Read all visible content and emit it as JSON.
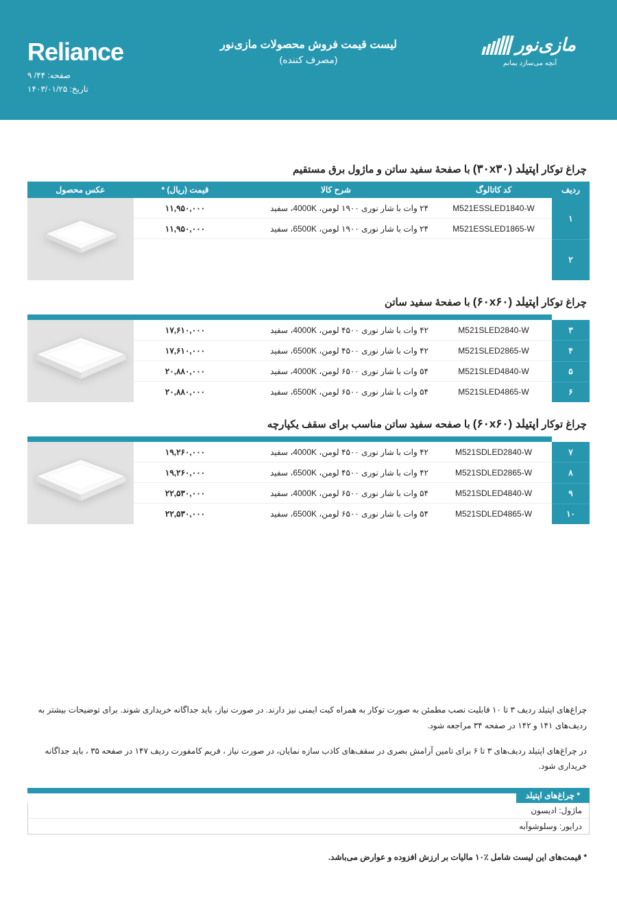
{
  "header": {
    "brand_name": "Reliance",
    "page_label": "صفحه: ۴۴/  ۹",
    "date_label": "تاریخ: ۱۴۰۳/۰۱/۲۵",
    "title_line1": "لیست قیمت فروش محصولات مازی‌نور",
    "title_line2": "(مصرف کننده)",
    "logo_text": "مازی‌نور",
    "logo_tagline": "آنچه می‌سازد بمانم"
  },
  "columns": {
    "idx": "ردیف",
    "code": "کد کاتالوگ",
    "desc": "شرح کالا",
    "price": "قیمت (ریال) *",
    "img": "عکس محصول"
  },
  "sections": [
    {
      "title_pre": "چراغ توکار ",
      "title_big": "اپتیلد (۳۰x۳۰)",
      "title_post": " با صفحهٔ سفید ساتن و ماژول برق مستقیم",
      "rows": [
        {
          "idx": "۱",
          "code": "M521ESSLED1840-W",
          "desc": "۲۴ وات با شار نوری  ۱۹۰۰ لومن، 4000K، سفید",
          "price": "۱۱,۹۵۰,۰۰۰"
        },
        {
          "idx": "۲",
          "code": "M521ESSLED1865-W",
          "desc": "۲۴ وات با شار نوری  ۱۹۰۰ لومن، 6500K، سفید",
          "price": "۱۱,۹۵۰,۰۰۰"
        }
      ]
    },
    {
      "title_pre": "چراغ توکار ",
      "title_big": "اپتیلد (۶۰x۶۰)",
      "title_post": " با صفحهٔ سفید ساتن",
      "rows": [
        {
          "idx": "۳",
          "code": "M521SLED2840-W",
          "desc": "۴۲ وات با شار نوری  ۴۵۰۰ لومن، 4000K، سفید",
          "price": "۱۷,۶۱۰,۰۰۰"
        },
        {
          "idx": "۴",
          "code": "M521SLED2865-W",
          "desc": "۴۲ وات با شار نوری  ۴۵۰۰ لومن، 6500K، سفید",
          "price": "۱۷,۶۱۰,۰۰۰"
        },
        {
          "idx": "۵",
          "code": "M521SLED4840-W",
          "desc": "۵۴ وات با شار نوری  ۶۵۰۰ لومن، 4000K، سفید",
          "price": "۲۰,۸۸۰,۰۰۰"
        },
        {
          "idx": "۶",
          "code": "M521SLED4865-W",
          "desc": "۵۴ وات با شار نوری  ۶۵۰۰ لومن، 6500K، سفید",
          "price": "۲۰,۸۸۰,۰۰۰"
        }
      ]
    },
    {
      "title_pre": "چراغ توکار ",
      "title_big": "اپتیلد (۶۰x۶۰)",
      "title_post": " با صفحه سفید ساتن مناسب برای سقف یکپارچه",
      "rows": [
        {
          "idx": "۷",
          "code": "M521SDLED2840-W",
          "desc": "۴۲ وات با شار نوری  ۴۵۰۰ لومن، 4000K، سفید",
          "price": "۱۹,۲۶۰,۰۰۰"
        },
        {
          "idx": "۸",
          "code": "M521SDLED2865-W",
          "desc": "۴۲ وات با شار نوری  ۴۵۰۰ لومن، 6500K، سفید",
          "price": "۱۹,۲۶۰,۰۰۰"
        },
        {
          "idx": "۹",
          "code": "M521SDLED4840-W",
          "desc": "۵۴ وات با شار نوری  ۶۵۰۰ لومن، 4000K، سفید",
          "price": "۲۲,۵۳۰,۰۰۰"
        },
        {
          "idx": "۱۰",
          "code": "M521SDLED4865-W",
          "desc": "۵۴ وات با شار نوری  ۶۵۰۰ لومن، 6500K، سفید",
          "price": "۲۲,۵۳۰,۰۰۰"
        }
      ]
    }
  ],
  "notes": [
    "چراغ‌های اپتیلد ردیف ۳ تا ۱۰ قابلیت نصب مطمئن به صورت توکار به همراه کیت ایمنی نیز دارند. در صورت نیاز، باید جداگانه خریداری شوند. برای توضیحات بیشتر به ردیف‌های ۱۴۱ و ۱۴۲ در صفحه ۳۴ مراجعه شود.",
    "در چراغ‌های اپتیلد ردیف‌های ۳ تا ۶ برای تامین آرامش بصری در سقف‌های کاذب سازه نمایان، در صورت نیاز ، فریم کامفورت ردیف ۱۴۷ در صفحه ۳۵ ، باید جداگانه خریداری شود."
  ],
  "footer": {
    "label": "* چراغ‌های اپتیلد",
    "line1": "ماژول: ادیسون",
    "line2": "درایور: وسلوشوآبه"
  },
  "vat": "* قیمت‌های این لیست شامل ٪۱۰ مالیات بر ارزش افزوده و عوارض می‌باشد.",
  "colors": {
    "teal": "#2697af",
    "img_bg": "#e2e2e2"
  }
}
